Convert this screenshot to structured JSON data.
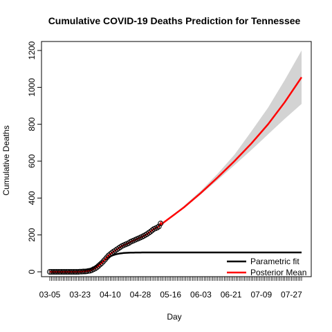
{
  "chart_data": {
    "type": "line",
    "title": "Cumulative COVID-19 Deaths Prediction for Tennessee",
    "xlabel": "Day",
    "ylabel": "Cumulative Deaths",
    "ylim": [
      0,
      1200
    ],
    "yticks": [
      0,
      200,
      400,
      600,
      800,
      1000,
      1200
    ],
    "x_start_date": "03-05",
    "x_end_index": 150,
    "x_tick_labels": [
      "03-05",
      "03-23",
      "04-10",
      "04-28",
      "05-16",
      "06-03",
      "06-21",
      "07-09",
      "07-27"
    ],
    "x_tick_labels_index": [
      0,
      18,
      36,
      54,
      72,
      90,
      108,
      126,
      144
    ],
    "colors": {
      "parametric": "#000000",
      "posterior": "#ff0000",
      "band": "#d3d3d3"
    },
    "legend": {
      "position": "bottom-right",
      "entries": [
        "Parametric fit",
        "Posterior Mean"
      ]
    },
    "observed": {
      "day_index": [
        0,
        1,
        2,
        3,
        4,
        5,
        6,
        7,
        8,
        9,
        10,
        11,
        12,
        13,
        14,
        15,
        16,
        17,
        18,
        19,
        20,
        21,
        22,
        23,
        24,
        25,
        26,
        27,
        28,
        29,
        30,
        31,
        32,
        33,
        34,
        35,
        36,
        37,
        38,
        39,
        40,
        41,
        42,
        43,
        44,
        45,
        46,
        47,
        48,
        49,
        50,
        51,
        52,
        53,
        54,
        55,
        56,
        57,
        58,
        59,
        60,
        61,
        62,
        63,
        64,
        65,
        66
      ],
      "values": [
        0,
        0,
        0,
        0,
        0,
        0,
        0,
        0,
        0,
        0,
        0,
        0,
        0,
        0,
        0,
        0,
        0,
        0,
        1,
        1,
        2,
        2,
        3,
        5,
        6,
        9,
        14,
        18,
        24,
        32,
        40,
        48,
        58,
        68,
        78,
        88,
        96,
        103,
        110,
        115,
        122,
        128,
        134,
        140,
        144,
        148,
        152,
        156,
        162,
        166,
        170,
        174,
        178,
        182,
        186,
        190,
        195,
        200,
        205,
        212,
        218,
        225,
        232,
        236,
        240,
        246,
        262
      ]
    },
    "parametric_fit": {
      "model": "logistic",
      "asymptote": 105,
      "midpoint_day_index": 31,
      "rate": 0.27
    },
    "posterior_mean": {
      "day_index": [
        66,
        70,
        80,
        90,
        100,
        110,
        120,
        130,
        140,
        150
      ],
      "values": [
        255,
        282,
        350,
        428,
        512,
        600,
        695,
        800,
        920,
        1055
      ]
    },
    "credible_band": {
      "day_index": [
        66,
        70,
        80,
        90,
        100,
        110,
        120,
        130,
        140,
        150
      ],
      "lower": [
        252,
        278,
        344,
        420,
        498,
        578,
        660,
        745,
        830,
        910
      ],
      "upper": [
        258,
        287,
        358,
        440,
        532,
        635,
        760,
        890,
        1040,
        1200
      ]
    }
  }
}
